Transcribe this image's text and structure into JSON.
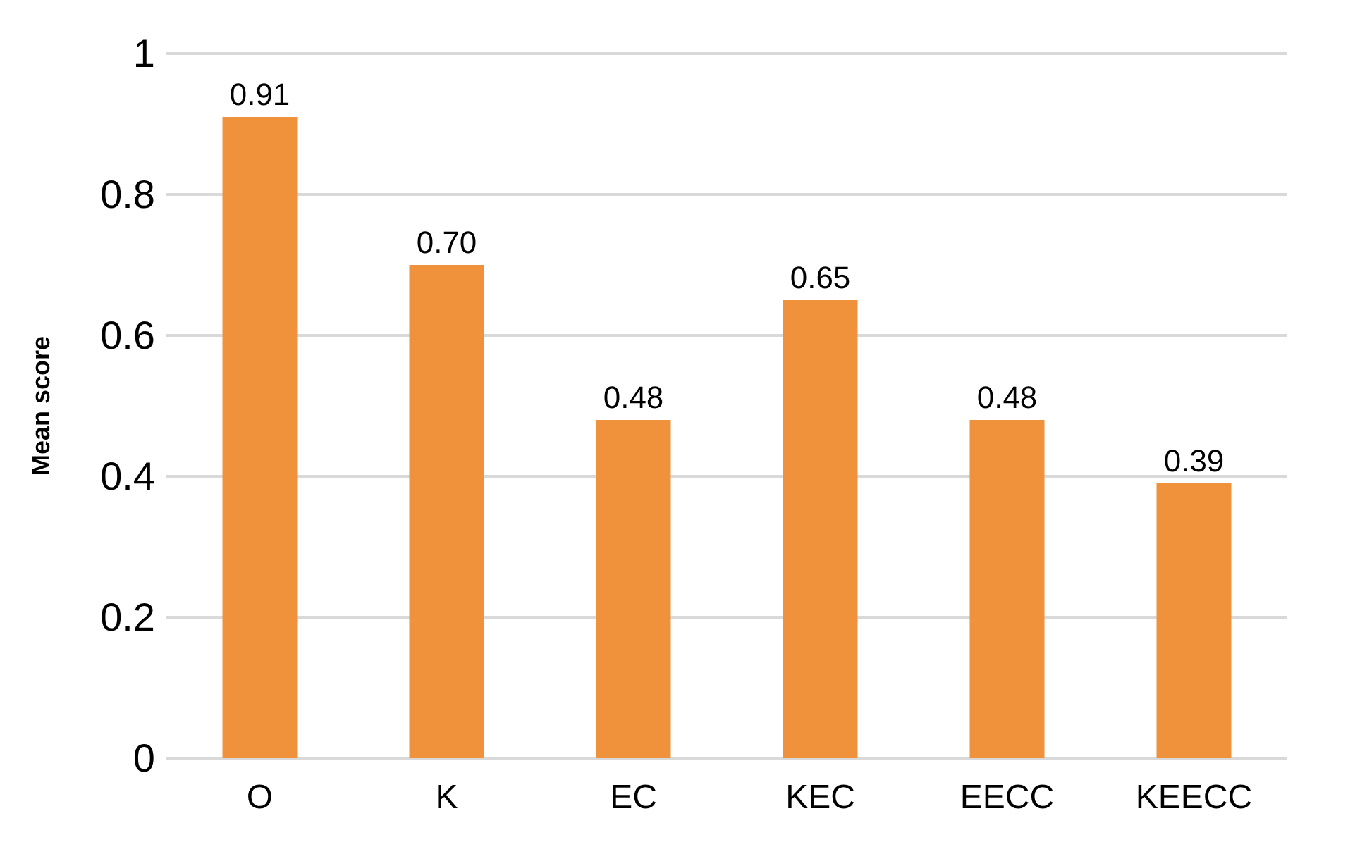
{
  "chart_data": {
    "type": "bar",
    "ylabel": "Mean score",
    "categories": [
      "O",
      "K",
      "EC",
      "KEC",
      "EECC",
      "KEECC"
    ],
    "values": [
      0.91,
      0.7,
      0.48,
      0.65,
      0.48,
      0.39
    ],
    "value_labels": [
      "0.91",
      "0.70",
      "0.48",
      "0.65",
      "0.48",
      "0.39"
    ],
    "color": "#f0923c",
    "ylim": [
      0,
      1
    ],
    "yticks": [
      0,
      0.2,
      0.4,
      0.6,
      0.8,
      1
    ],
    "grid": true
  }
}
